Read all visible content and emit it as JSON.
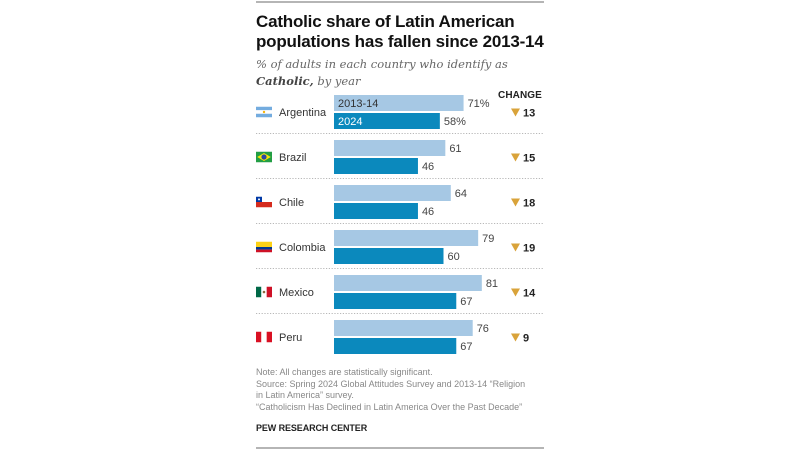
{
  "chart_data": {
    "type": "bar",
    "orientation": "horizontal",
    "title": "Catholic share of Latin American populations has fallen since 2013-14",
    "subtitle_prefix": "% of adults in each country who identify as ",
    "subtitle_bold": "Catholic,",
    "subtitle_suffix": " by year",
    "categories": [
      "Argentina",
      "Brazil",
      "Chile",
      "Colombia",
      "Mexico",
      "Peru"
    ],
    "series": [
      {
        "name": "2013-14",
        "color": "#a6c8e4",
        "values": [
          71,
          61,
          64,
          79,
          81,
          76
        ]
      },
      {
        "name": "2024",
        "color": "#0b89bd",
        "values": [
          58,
          46,
          46,
          60,
          67,
          67
        ]
      }
    ],
    "value_labels_first_row": [
      "71%",
      "58%"
    ],
    "change_header": "CHANGE",
    "change": [
      13,
      15,
      18,
      19,
      14,
      9
    ],
    "change_direction": "down",
    "change_marker_color": "#d9a33a",
    "xlim": [
      0,
      100
    ],
    "grid": false,
    "legend": "inline-first-row"
  },
  "flags": {
    "Argentina": "argentina-flag-icon",
    "Brazil": "brazil-flag-icon",
    "Chile": "chile-flag-icon",
    "Colombia": "colombia-flag-icon",
    "Mexico": "mexico-flag-icon",
    "Peru": "peru-flag-icon"
  },
  "notes": {
    "note": "Note: All changes are statistically significant.",
    "source_1": "Source: Spring 2024 Global Attitudes Survey and 2013-14 “Religion",
    "source_2": "in Latin America” survey.",
    "report": "“Catholicism Has Declined in Latin America Over the Past Decade”"
  },
  "brand": "PEW RESEARCH CENTER"
}
